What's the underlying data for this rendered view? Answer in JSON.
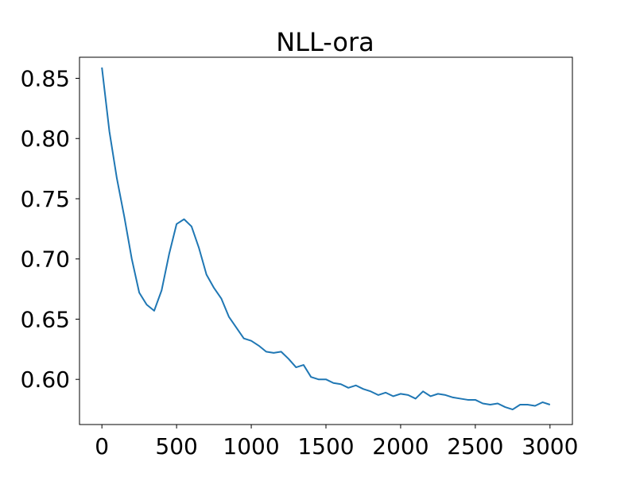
{
  "chart_data": {
    "type": "line",
    "title": "NLL-ora",
    "xlabel": "",
    "ylabel": "",
    "xlim": [
      -150,
      3150
    ],
    "ylim": [
      0.5625,
      0.8675
    ],
    "x_ticks": [
      0,
      500,
      1000,
      1500,
      2000,
      2500,
      3000
    ],
    "x_tick_labels": [
      "0",
      "500",
      "1000",
      "1500",
      "2000",
      "2500",
      "3000"
    ],
    "y_ticks": [
      0.6,
      0.65,
      0.7,
      0.75,
      0.8,
      0.85
    ],
    "y_tick_labels": [
      "0.60",
      "0.65",
      "0.70",
      "0.75",
      "0.80",
      "0.85"
    ],
    "grid": false,
    "series": [
      {
        "color": "#1f77b4",
        "x": [
          0,
          50,
          100,
          150,
          200,
          250,
          300,
          350,
          400,
          450,
          500,
          550,
          600,
          650,
          700,
          750,
          800,
          850,
          900,
          950,
          1000,
          1050,
          1100,
          1150,
          1200,
          1250,
          1300,
          1350,
          1400,
          1450,
          1500,
          1550,
          1600,
          1650,
          1700,
          1750,
          1800,
          1850,
          1900,
          1950,
          2000,
          2050,
          2100,
          2150,
          2200,
          2250,
          2300,
          2350,
          2400,
          2450,
          2500,
          2550,
          2600,
          2650,
          2700,
          2750,
          2800,
          2850,
          2900,
          2950,
          3000
        ],
        "y": [
          0.859,
          0.806,
          0.767,
          0.735,
          0.7,
          0.672,
          0.662,
          0.657,
          0.674,
          0.704,
          0.729,
          0.733,
          0.727,
          0.709,
          0.687,
          0.676,
          0.667,
          0.652,
          0.643,
          0.634,
          0.632,
          0.628,
          0.623,
          0.622,
          0.623,
          0.617,
          0.61,
          0.612,
          0.602,
          0.6,
          0.6,
          0.597,
          0.596,
          0.593,
          0.595,
          0.592,
          0.59,
          0.587,
          0.589,
          0.586,
          0.588,
          0.587,
          0.584,
          0.59,
          0.586,
          0.588,
          0.587,
          0.585,
          0.584,
          0.583,
          0.583,
          0.58,
          0.579,
          0.58,
          0.577,
          0.575,
          0.579,
          0.579,
          0.578,
          0.581,
          0.579
        ]
      }
    ]
  }
}
